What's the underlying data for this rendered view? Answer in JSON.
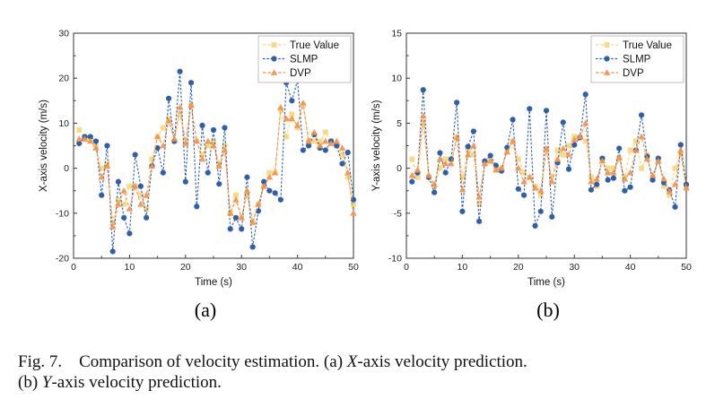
{
  "figure": {
    "panel_labels": [
      "(a)",
      "(b)"
    ],
    "caption": {
      "prefix": "Fig. 7.",
      "l1_text": "Comparison of velocity estimation. (a) ",
      "l1_ax": "X",
      "l1_tail": "-axis velocity prediction.",
      "l2_text": "(b) ",
      "l2_ax": "Y",
      "l2_tail": "-axis velocity prediction."
    }
  },
  "colors": {
    "true_value": "#f6d77e",
    "slmp": "#2f5fa8",
    "dvp": "#f2944f",
    "axis": "#333333"
  },
  "chart_data": [
    {
      "type": "line",
      "title": "",
      "xlabel": "Time (s)",
      "ylabel": "X-axis velocity (m/s)",
      "xlim": [
        0,
        50
      ],
      "ylim": [
        -20,
        30
      ],
      "xticks": [
        0,
        10,
        20,
        30,
        40,
        50
      ],
      "yticks": [
        -20,
        -10,
        0,
        10,
        20,
        30
      ],
      "legend": "top-right",
      "x": [
        1,
        2,
        3,
        4,
        5,
        6,
        7,
        8,
        9,
        10,
        11,
        12,
        13,
        14,
        15,
        16,
        17,
        18,
        19,
        20,
        21,
        22,
        23,
        24,
        25,
        26,
        27,
        28,
        29,
        30,
        31,
        32,
        33,
        34,
        35,
        36,
        37,
        38,
        39,
        40,
        41,
        42,
        43,
        44,
        45,
        46,
        47,
        48,
        49,
        50
      ],
      "series": [
        {
          "name": "True Value",
          "marker": "square",
          "values": [
            8.5,
            6.5,
            6.5,
            5,
            0,
            1,
            -12,
            -7,
            -8,
            -4,
            -4,
            -6,
            -9,
            2,
            7,
            9,
            11,
            6,
            12,
            6,
            14,
            6,
            3,
            5,
            6,
            1,
            5,
            -10,
            -6,
            -11,
            -6,
            -12,
            -8,
            -4,
            -1,
            -1,
            13,
            7,
            12,
            9,
            14,
            6,
            6,
            6,
            8,
            6,
            5,
            3,
            -2,
            -8
          ]
        },
        {
          "name": "SLMP",
          "marker": "circle",
          "values": [
            5.5,
            7,
            7,
            6,
            -6,
            5,
            -18.5,
            -3,
            -11,
            -14.5,
            3,
            -4,
            -11,
            0.5,
            4.5,
            -1,
            15.5,
            6,
            21.5,
            -3,
            19,
            -8.5,
            9.5,
            -1,
            8.5,
            -3.5,
            9,
            -13.5,
            -11,
            -13.5,
            -2,
            -17.5,
            -9.5,
            -3,
            -5,
            -5.5,
            -7,
            19,
            15,
            19.5,
            4,
            5,
            7.5,
            4.5,
            4,
            6,
            5,
            1,
            3.5,
            -7
          ]
        },
        {
          "name": "DVP",
          "marker": "triangle",
          "values": [
            6.5,
            6.5,
            6,
            4.5,
            -2,
            0.5,
            -13,
            -8,
            -5,
            -9,
            -4,
            -8,
            -6,
            0.5,
            7,
            5,
            10.5,
            6.5,
            13.5,
            5.5,
            14,
            6,
            2,
            6,
            5,
            0.5,
            4,
            -10,
            -7,
            -11,
            -5,
            -12,
            -8,
            -4,
            -2,
            -1,
            13.5,
            11,
            11,
            9.5,
            14.5,
            6,
            8,
            5,
            6,
            5.5,
            6,
            4.5,
            -1,
            -10
          ]
        }
      ]
    },
    {
      "type": "line",
      "title": "",
      "xlabel": "Time (s)",
      "ylabel": "Y-axis velocity (m/s)",
      "xlim": [
        0,
        50
      ],
      "ylim": [
        -10,
        15
      ],
      "xticks": [
        0,
        10,
        20,
        30,
        40,
        50
      ],
      "yticks": [
        -10,
        -5,
        0,
        5,
        10,
        15
      ],
      "legend": "top-right",
      "x": [
        1,
        2,
        3,
        4,
        5,
        6,
        7,
        8,
        9,
        10,
        11,
        12,
        13,
        14,
        15,
        16,
        17,
        18,
        19,
        20,
        21,
        22,
        23,
        24,
        25,
        26,
        27,
        28,
        29,
        30,
        31,
        32,
        33,
        34,
        35,
        36,
        37,
        38,
        39,
        40,
        41,
        42,
        43,
        44,
        45,
        46,
        47,
        48,
        49,
        50
      ],
      "series": [
        {
          "name": "True Value",
          "marker": "square",
          "values": [
            1,
            -1,
            5,
            -1,
            -2,
            0,
            1,
            1,
            3.5,
            -1,
            2,
            1.5,
            -4,
            0.5,
            1,
            0,
            0,
            2,
            3,
            1,
            -0.5,
            -1,
            -2,
            -3,
            2,
            -1,
            2,
            1.5,
            2.5,
            3.5,
            3.5,
            3,
            -1,
            -2,
            1,
            0,
            0,
            1,
            -1,
            2,
            3,
            0,
            1.5,
            -1,
            1,
            -2,
            -3,
            0,
            1.5,
            -2
          ]
        },
        {
          "name": "SLMP",
          "marker": "circle",
          "values": [
            -1.5,
            -0.5,
            8.7,
            -1,
            -2.7,
            1.7,
            -0.5,
            1,
            7.3,
            -4.8,
            2.4,
            4.1,
            -5.9,
            0.8,
            1.4,
            0.3,
            -0.3,
            2.3,
            5.4,
            -2.3,
            -3,
            6.6,
            -6.4,
            -4.8,
            6.4,
            -5.4,
            0.6,
            5.1,
            -0.1,
            2.6,
            3.4,
            8.2,
            -2.4,
            -1.8,
            1.1,
            -1.3,
            -1.1,
            2.2,
            -2.5,
            -2.1,
            2,
            5.9,
            1.3,
            -1.3,
            1.1,
            -1.6,
            -2.4,
            -4.3,
            2.6,
            -1.8
          ]
        },
        {
          "name": "DVP",
          "marker": "triangle",
          "values": [
            -0.8,
            -0.2,
            5.8,
            -0.8,
            -1.8,
            1,
            0.5,
            0.5,
            3.4,
            -2.4,
            1.5,
            2.5,
            -3.2,
            0.5,
            0.8,
            -0.2,
            0,
            1.8,
            3,
            0,
            -1.5,
            -1,
            -2.2,
            -2.5,
            2.2,
            -1.5,
            1,
            2.2,
            1.5,
            3.2,
            3.5,
            5,
            -1.5,
            -1.2,
            0.8,
            -0.5,
            -0.5,
            1.2,
            -1.2,
            -0.5,
            2,
            3.5,
            1,
            -0.8,
            0.8,
            -1.2,
            -2.6,
            -1.8,
            2,
            -2.2
          ]
        }
      ]
    }
  ]
}
